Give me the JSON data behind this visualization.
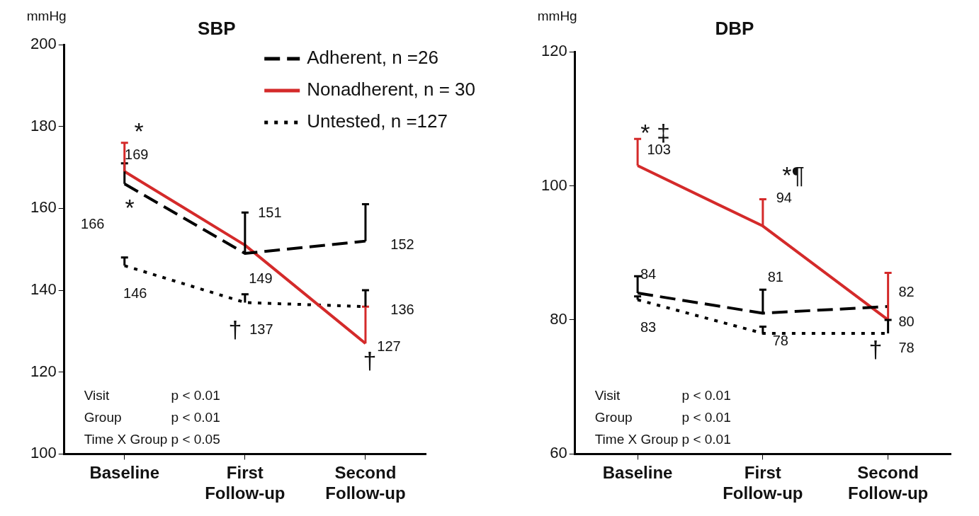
{
  "chart_data": [
    {
      "type": "line",
      "title": "SBP",
      "ylabel": "mmHg",
      "categories": [
        "Baseline",
        "First Follow-up",
        "Second Follow-up"
      ],
      "ylim": [
        100,
        200
      ],
      "yticks": [
        100,
        120,
        140,
        160,
        180,
        200
      ],
      "legend": "top right",
      "data_labels": true,
      "series": [
        {
          "name": "Adherent, n =26",
          "color": "#000000",
          "line_style": "dashed",
          "values": [
            166,
            149,
            152
          ],
          "errors": [
            [
              166,
              171
            ],
            [
              149,
              159
            ],
            [
              152,
              161
            ]
          ]
        },
        {
          "name": "Nonadherent, n = 30",
          "color": "#d42a2a",
          "line_style": "solid",
          "values": [
            169,
            151,
            127
          ],
          "errors": [
            [
              169,
              176
            ],
            null,
            [
              127,
              136
            ]
          ]
        },
        {
          "name": "Untested, n =127",
          "color": "#000000",
          "line_style": "dotted",
          "values": [
            146,
            137,
            136
          ],
          "errors": [
            [
              146,
              148
            ],
            [
              137,
              139
            ],
            [
              136,
              140
            ]
          ]
        }
      ],
      "annotations": [
        "*",
        "*",
        "†",
        "†",
        "Visit\tp < 0.01",
        "Group\tp < 0.01",
        "Time X Group\tp < 0.05"
      ]
    },
    {
      "type": "line",
      "title": "DBP",
      "ylabel": "mmHg",
      "categories": [
        "Baseline",
        "First Follow-up",
        "Second Follow-up"
      ],
      "ylim": [
        60,
        120
      ],
      "yticks": [
        60,
        80,
        100,
        120
      ],
      "data_labels": true,
      "series": [
        {
          "color": "#000000",
          "line_style": "dashed",
          "values": [
            84,
            81,
            82
          ],
          "errors": [
            [
              84,
              86.5
            ],
            [
              81,
              84.5
            ],
            null
          ]
        },
        {
          "color": "#d42a2a",
          "line_style": "solid",
          "values": [
            103,
            94,
            80
          ],
          "errors": [
            [
              103,
              107
            ],
            [
              94,
              98
            ],
            [
              80,
              87
            ]
          ]
        },
        {
          "color": "#000000",
          "line_style": "dotted",
          "values": [
            83,
            78,
            78
          ],
          "errors": [
            [
              83,
              83.5
            ],
            [
              78,
              79
            ],
            [
              78,
              80
            ]
          ]
        }
      ],
      "annotations": [
        "* ‡",
        "*¶",
        "†",
        "Visit\tp < 0.01",
        "Group\tp < 0.01",
        "Time X Group\tp < 0.01"
      ]
    }
  ]
}
